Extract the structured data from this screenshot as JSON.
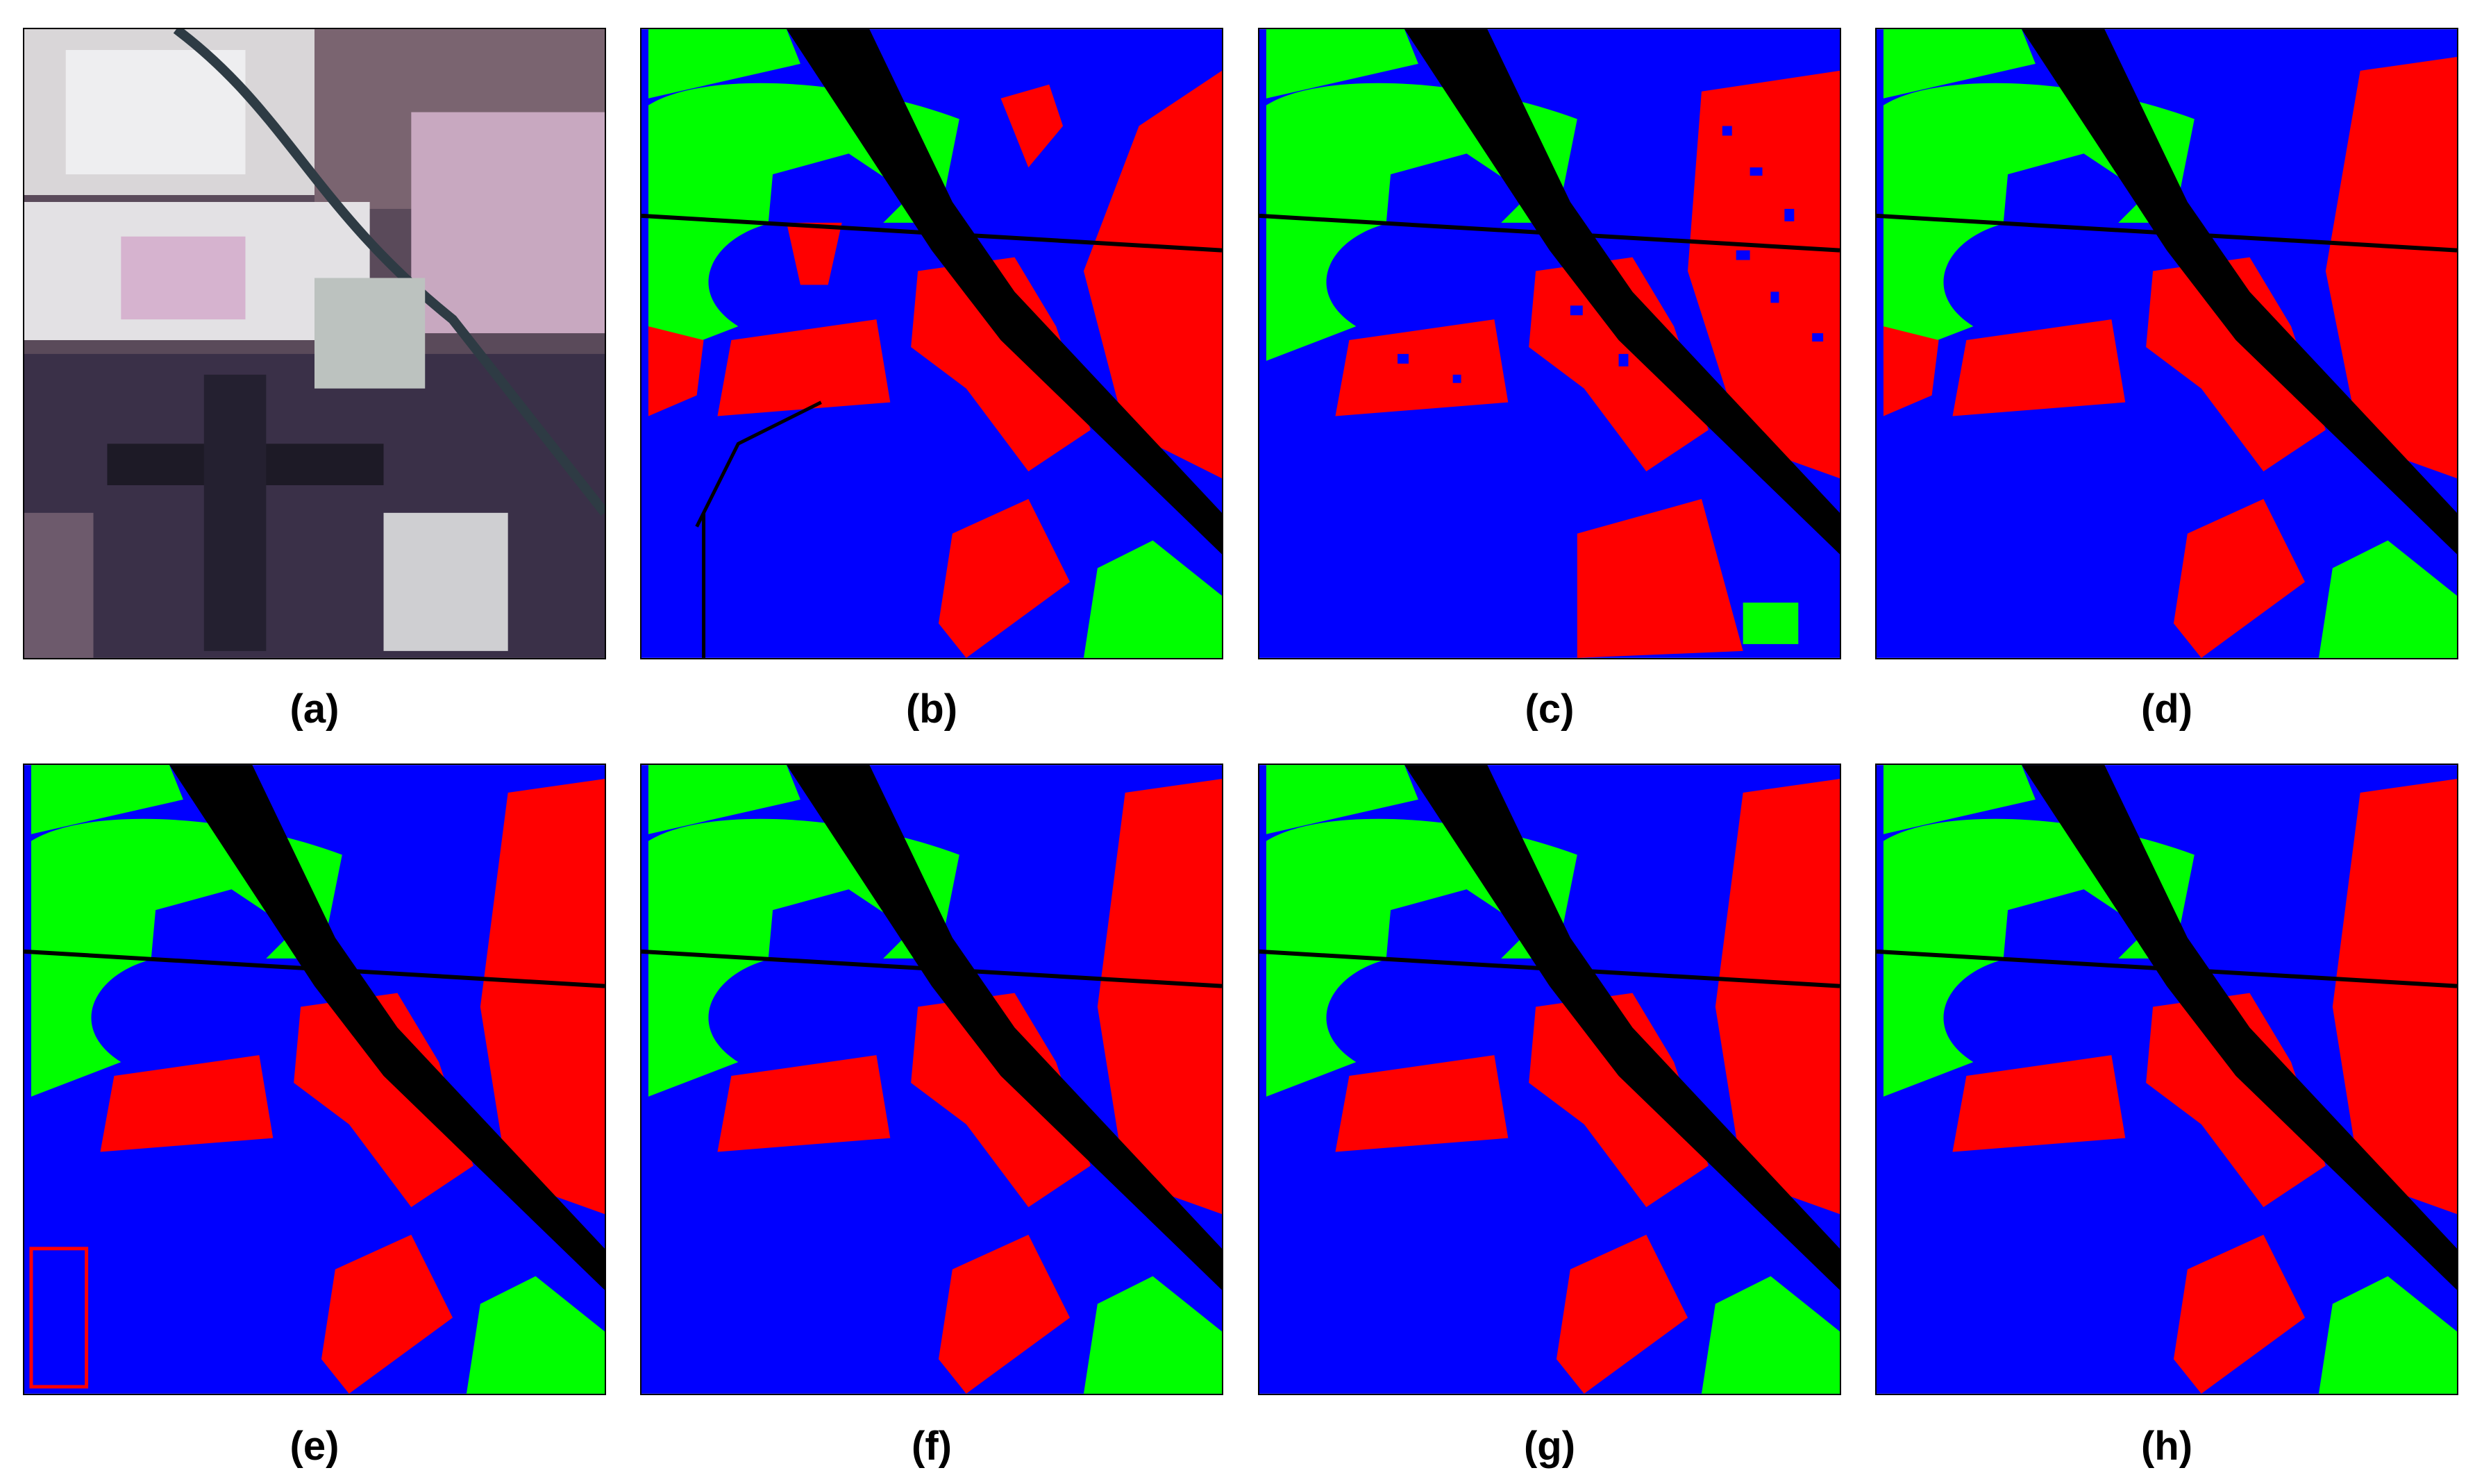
{
  "panels": [
    {
      "id": "a",
      "label": "(a)",
      "kind": "satellite"
    },
    {
      "id": "b",
      "label": "(b)",
      "kind": "classmap"
    },
    {
      "id": "c",
      "label": "(c)",
      "kind": "classmap"
    },
    {
      "id": "d",
      "label": "(d)",
      "kind": "classmap"
    },
    {
      "id": "e",
      "label": "(e)",
      "kind": "classmap"
    },
    {
      "id": "f",
      "label": "(f)",
      "kind": "classmap"
    },
    {
      "id": "g",
      "label": "(g)",
      "kind": "classmap"
    },
    {
      "id": "h",
      "label": "(h)",
      "kind": "classmap"
    }
  ],
  "class_colors": {
    "blue": "#0000ff",
    "green": "#00ff00",
    "red": "#ff0000",
    "black": "#000000"
  }
}
